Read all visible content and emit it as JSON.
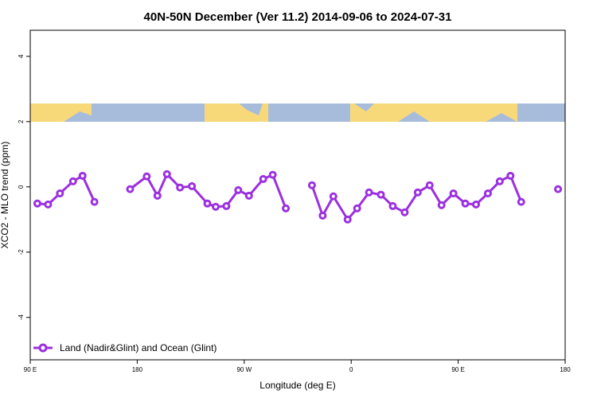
{
  "chart_data": {
    "type": "line",
    "title": "40N-50N December (Ver 11.2)   2014-09-06 to 2024-07-31",
    "x_label": "Longitude (deg E)",
    "y_label": "XCO2 - MLO trend (ppm)",
    "xlim": [
      90,
      540
    ],
    "ylim": [
      -5.3,
      4.8
    ],
    "xticks": [
      {
        "value": 90,
        "label": "90 E"
      },
      {
        "value": 180,
        "label": "180"
      },
      {
        "value": 270,
        "label": "90 W"
      },
      {
        "value": 360,
        "label": "0"
      },
      {
        "value": 450,
        "label": "90 E"
      },
      {
        "value": 540,
        "label": "180"
      }
    ],
    "yticks": [
      -4,
      -2,
      0,
      2,
      4
    ],
    "legend_position": "bottom-left",
    "x": [
      96,
      105,
      115,
      126,
      134,
      144,
      160,
      174,
      188,
      197,
      205,
      216,
      226,
      239,
      246,
      255,
      265,
      274,
      286,
      294,
      305,
      316,
      327,
      336,
      345,
      357,
      365,
      375,
      385,
      395,
      405,
      416,
      426,
      436,
      446,
      456,
      465,
      475,
      485,
      494,
      503,
      518,
      534
    ],
    "series": [
      {
        "name": "Land (Nadir&Glint) and Ocean (Glint)",
        "color": "#9b30e0",
        "values": [
          -0.51,
          -0.54,
          -0.2,
          0.17,
          0.34,
          -0.46,
          null,
          -0.07,
          0.32,
          -0.27,
          0.39,
          -0.02,
          0.02,
          -0.51,
          -0.61,
          -0.59,
          -0.1,
          -0.27,
          0.24,
          0.37,
          -0.66,
          null,
          0.05,
          -0.88,
          -0.29,
          -1.0,
          -0.66,
          -0.17,
          -0.24,
          -0.59,
          -0.78,
          -0.17,
          0.05,
          -0.56,
          -0.2,
          -0.51,
          -0.54,
          -0.2,
          0.17,
          0.34,
          -0.46,
          null,
          -0.07
        ]
      }
    ]
  }
}
